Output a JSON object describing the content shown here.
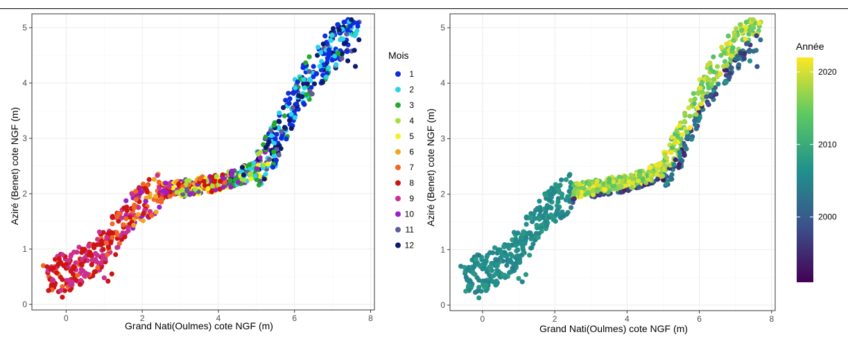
{
  "chart_data": [
    {
      "type": "scatter",
      "xlabel": "Grand Nati(Oulmes) cote NGF (m)",
      "ylabel": "Aziré (Benet) cote NGF (m)",
      "xlim": [
        -0.9,
        8.1
      ],
      "ylim": [
        -0.1,
        5.25
      ],
      "x_ticks": [
        "0",
        "2",
        "4",
        "6",
        "8"
      ],
      "y_ticks": [
        "0",
        "1",
        "2",
        "3",
        "4",
        "5"
      ],
      "grid": true,
      "legend_title": "Mois",
      "legend_position": "right",
      "color_by": "month",
      "series": [
        {
          "name": "1",
          "color": "#0c2ee0"
        },
        {
          "name": "2",
          "color": "#29d4e6"
        },
        {
          "name": "3",
          "color": "#23a92c"
        },
        {
          "name": "4",
          "color": "#a6e13a"
        },
        {
          "name": "5",
          "color": "#f2f21c"
        },
        {
          "name": "6",
          "color": "#f0a61e"
        },
        {
          "name": "7",
          "color": "#f26522"
        },
        {
          "name": "8",
          "color": "#cc1414"
        },
        {
          "name": "9",
          "color": "#cc2f92"
        },
        {
          "name": "10",
          "color": "#9b1ec9"
        },
        {
          "name": "11",
          "color": "#5e5e96"
        },
        {
          "name": "12",
          "color": "#0b1a6e"
        }
      ],
      "points": [
        [
          -0.6,
          0.7
        ],
        [
          -0.5,
          0.68
        ],
        [
          -0.3,
          0.6
        ],
        [
          -0.3,
          0.35
        ],
        [
          -0.2,
          0.23
        ],
        [
          -0.1,
          0.13
        ],
        [
          0.0,
          0.42
        ],
        [
          0.1,
          0.65
        ],
        [
          0.3,
          0.75
        ],
        [
          0.5,
          0.85
        ],
        [
          0.6,
          0.95
        ],
        [
          0.7,
          0.78
        ],
        [
          0.8,
          0.6
        ],
        [
          0.9,
          0.74
        ],
        [
          1.0,
          0.48
        ],
        [
          1.1,
          0.42
        ],
        [
          1.2,
          0.55
        ],
        [
          1.3,
          0.9
        ],
        [
          1.4,
          1.1
        ],
        [
          1.5,
          1.25
        ],
        [
          1.6,
          1.4
        ],
        [
          1.7,
          1.62
        ],
        [
          1.8,
          1.48
        ],
        [
          1.9,
          1.75
        ],
        [
          2.0,
          1.6
        ],
        [
          2.1,
          1.92
        ],
        [
          2.2,
          2.0
        ],
        [
          2.4,
          2.05
        ],
        [
          2.5,
          1.85
        ],
        [
          2.6,
          2.1
        ],
        [
          2.8,
          2.0
        ],
        [
          3.0,
          2.15
        ],
        [
          3.1,
          1.95
        ],
        [
          3.3,
          2.2
        ],
        [
          3.5,
          2.05
        ],
        [
          3.7,
          2.25
        ],
        [
          3.9,
          2.1
        ],
        [
          4.1,
          2.3
        ],
        [
          4.3,
          2.15
        ],
        [
          4.5,
          2.3
        ],
        [
          4.7,
          2.2
        ],
        [
          4.8,
          2.5
        ],
        [
          5.0,
          2.4
        ],
        [
          5.1,
          2.6
        ],
        [
          5.2,
          2.3
        ],
        [
          5.3,
          2.8
        ],
        [
          5.4,
          3.0
        ],
        [
          5.5,
          2.5
        ],
        [
          5.6,
          3.3
        ],
        [
          5.7,
          3.1
        ],
        [
          5.8,
          3.6
        ],
        [
          5.9,
          3.4
        ],
        [
          6.0,
          3.9
        ],
        [
          6.1,
          3.7
        ],
        [
          6.2,
          4.1
        ],
        [
          6.3,
          4.2
        ],
        [
          6.4,
          3.9
        ],
        [
          6.5,
          4.3
        ],
        [
          6.6,
          4.5
        ],
        [
          6.7,
          4.0
        ],
        [
          6.8,
          4.6
        ],
        [
          6.9,
          4.2
        ],
        [
          7.0,
          4.8
        ],
        [
          7.1,
          4.5
        ],
        [
          7.2,
          4.9
        ],
        [
          7.3,
          5.1
        ],
        [
          7.4,
          4.4
        ],
        [
          7.5,
          5.0
        ],
        [
          7.6,
          4.3
        ],
        [
          7.7,
          5.1
        ]
      ]
    },
    {
      "type": "scatter",
      "xlabel": "Grand Nati(Oulmes) cote NGF (m)",
      "ylabel": "Aziré (Benet) cote NGF (m)",
      "xlim": [
        -0.9,
        8.1
      ],
      "ylim": [
        -0.1,
        5.25
      ],
      "x_ticks": [
        "0",
        "2",
        "4",
        "6",
        "8"
      ],
      "y_ticks": [
        "0",
        "1",
        "2",
        "3",
        "4",
        "5"
      ],
      "grid": true,
      "legend_title": "Année",
      "legend_position": "right",
      "legend_type": "colorbar",
      "colorbar_ticks": [
        "2020",
        "2010",
        "2000"
      ],
      "colorbar_range": [
        1991,
        2022
      ],
      "colorscale": [
        "#440154",
        "#3b528b",
        "#21918c",
        "#5ec962",
        "#fde725"
      ],
      "color_by": "year"
    }
  ]
}
